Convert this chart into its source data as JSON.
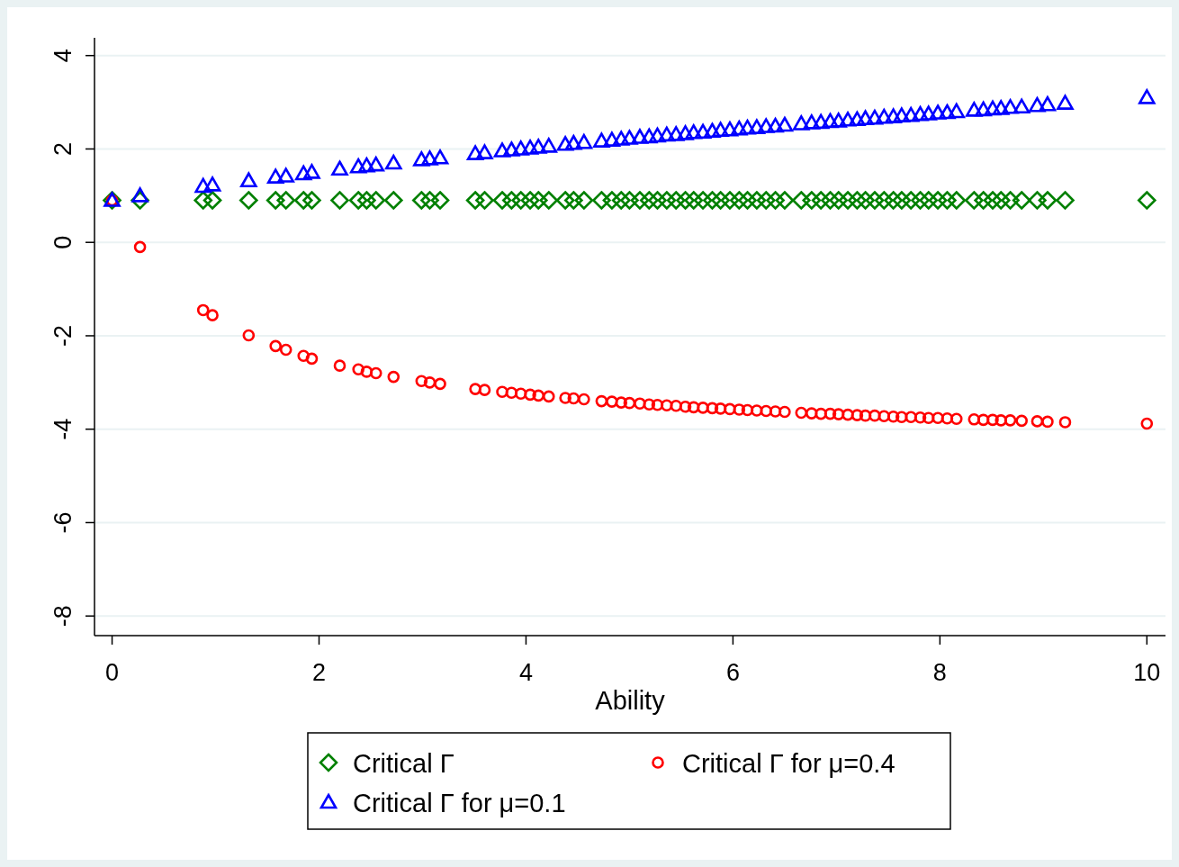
{
  "chart_data": {
    "type": "scatter",
    "xlabel": "Ability",
    "xlim": [
      -0.17,
      10.18
    ],
    "ylim": [
      -8.42,
      4.38
    ],
    "xticks": [
      0,
      2,
      4,
      6,
      8,
      10
    ],
    "yticks": [
      -8,
      -6,
      -4,
      -2,
      0,
      2,
      4
    ],
    "grid": "y",
    "legend": "bottom",
    "x": [
      0,
      0.27,
      0.88,
      0.97,
      1.32,
      1.58,
      1.68,
      1.85,
      1.93,
      2.2,
      2.38,
      2.46,
      2.55,
      2.72,
      2.99,
      3.07,
      3.17,
      3.51,
      3.6,
      3.77,
      3.86,
      3.95,
      4.04,
      4.12,
      4.22,
      4.38,
      4.46,
      4.56,
      4.73,
      4.83,
      4.92,
      5.0,
      5.1,
      5.19,
      5.27,
      5.36,
      5.45,
      5.54,
      5.62,
      5.71,
      5.8,
      5.88,
      5.97,
      6.06,
      6.14,
      6.23,
      6.32,
      6.41,
      6.5,
      6.66,
      6.76,
      6.85,
      6.94,
      7.02,
      7.11,
      7.2,
      7.28,
      7.37,
      7.46,
      7.55,
      7.63,
      7.72,
      7.81,
      7.89,
      7.98,
      8.07,
      8.16,
      8.33,
      8.42,
      8.51,
      8.59,
      8.68,
      8.79,
      8.94,
      9.04,
      9.21,
      10
    ],
    "series": [
      {
        "name": "Critical Γ",
        "color": "#008000",
        "marker": "diamond",
        "values": [
          0.9,
          0.9,
          0.9,
          0.9,
          0.9,
          0.9,
          0.9,
          0.9,
          0.9,
          0.9,
          0.9,
          0.9,
          0.9,
          0.9,
          0.9,
          0.9,
          0.9,
          0.9,
          0.9,
          0.9,
          0.9,
          0.9,
          0.9,
          0.9,
          0.9,
          0.9,
          0.9,
          0.9,
          0.9,
          0.9,
          0.9,
          0.9,
          0.9,
          0.9,
          0.9,
          0.9,
          0.9,
          0.9,
          0.9,
          0.9,
          0.9,
          0.9,
          0.9,
          0.9,
          0.9,
          0.9,
          0.9,
          0.9,
          0.9,
          0.9,
          0.9,
          0.9,
          0.9,
          0.9,
          0.9,
          0.9,
          0.9,
          0.9,
          0.9,
          0.9,
          0.9,
          0.9,
          0.9,
          0.9,
          0.9,
          0.9,
          0.9,
          0.9,
          0.9,
          0.9,
          0.9,
          0.9,
          0.9,
          0.9,
          0.9,
          0.9,
          0.9
        ]
      },
      {
        "name": "Critical Γ for μ=0.4",
        "color": "#ff0000",
        "marker": "circle",
        "values": [
          0.9,
          -0.1,
          -1.45,
          -1.56,
          -1.99,
          -2.22,
          -2.3,
          -2.43,
          -2.49,
          -2.64,
          -2.72,
          -2.77,
          -2.8,
          -2.88,
          -2.97,
          -3.0,
          -3.03,
          -3.14,
          -3.16,
          -3.2,
          -3.22,
          -3.24,
          -3.26,
          -3.28,
          -3.3,
          -3.33,
          -3.34,
          -3.36,
          -3.4,
          -3.41,
          -3.43,
          -3.44,
          -3.45,
          -3.47,
          -3.48,
          -3.49,
          -3.5,
          -3.52,
          -3.53,
          -3.54,
          -3.55,
          -3.56,
          -3.57,
          -3.58,
          -3.59,
          -3.6,
          -3.61,
          -3.62,
          -3.63,
          -3.65,
          -3.66,
          -3.67,
          -3.67,
          -3.68,
          -3.69,
          -3.7,
          -3.71,
          -3.71,
          -3.72,
          -3.73,
          -3.74,
          -3.74,
          -3.75,
          -3.76,
          -3.76,
          -3.77,
          -3.78,
          -3.79,
          -3.8,
          -3.8,
          -3.81,
          -3.81,
          -3.82,
          -3.83,
          -3.84,
          -3.85,
          -3.88
        ]
      },
      {
        "name": "Critical Γ for μ=0.1",
        "color": "#0000ff",
        "marker": "triangle",
        "values": [
          0.9,
          1.0,
          1.2,
          1.23,
          1.32,
          1.4,
          1.42,
          1.47,
          1.5,
          1.57,
          1.62,
          1.64,
          1.66,
          1.7,
          1.77,
          1.79,
          1.81,
          1.9,
          1.92,
          1.96,
          1.98,
          2.0,
          2.02,
          2.04,
          2.06,
          2.1,
          2.12,
          2.14,
          2.17,
          2.19,
          2.21,
          2.23,
          2.25,
          2.26,
          2.28,
          2.3,
          2.31,
          2.33,
          2.35,
          2.36,
          2.38,
          2.4,
          2.41,
          2.43,
          2.45,
          2.46,
          2.48,
          2.49,
          2.51,
          2.54,
          2.56,
          2.57,
          2.59,
          2.6,
          2.62,
          2.63,
          2.65,
          2.66,
          2.68,
          2.69,
          2.71,
          2.72,
          2.74,
          2.75,
          2.77,
          2.78,
          2.8,
          2.83,
          2.84,
          2.86,
          2.87,
          2.89,
          2.9,
          2.93,
          2.95,
          2.98,
          3.1
        ]
      }
    ]
  }
}
